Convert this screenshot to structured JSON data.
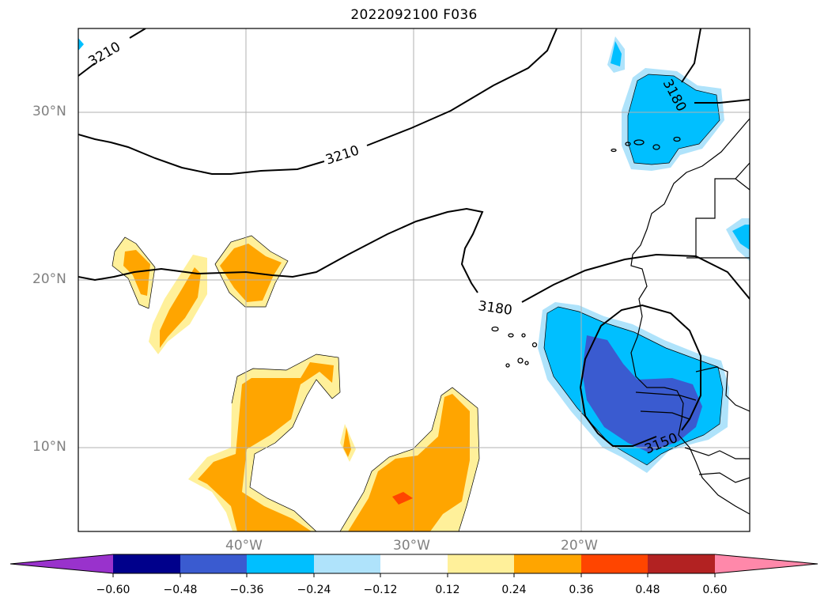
{
  "title": "2022092100 F036",
  "map": {
    "lat_labels": [
      "30°N",
      "20°N",
      "10°N"
    ],
    "lon_labels": [
      "40°W",
      "30°W",
      "20°W"
    ],
    "contour_labels": [
      "3210",
      "3210",
      "3180",
      "3180",
      "3150"
    ],
    "gridline_color": "#b0b0b0",
    "tick_label_color": "#808080"
  },
  "colorbar": {
    "labels": [
      "−0.60",
      "−0.48",
      "−0.36",
      "−0.24",
      "−0.12",
      "0.12",
      "0.24",
      "0.36",
      "0.48",
      "0.60"
    ],
    "colors": [
      "#9932cc",
      "#00008b",
      "#3a5bd0",
      "#00bfff",
      "#afe3fb",
      "#ffffff",
      "#fff09a",
      "#ffa500",
      "#ff4500",
      "#b22222",
      "#ff88aa"
    ],
    "extend": "both"
  }
}
